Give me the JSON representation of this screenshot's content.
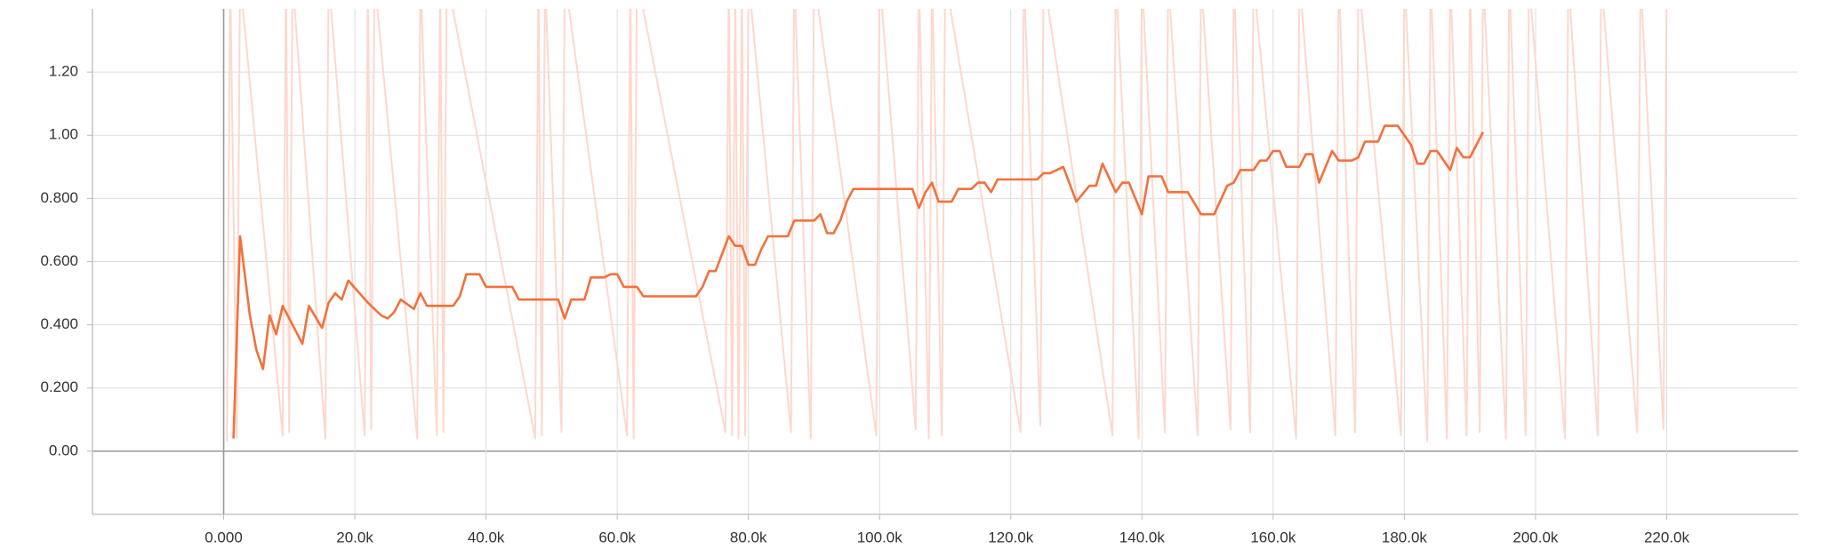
{
  "chart_data": {
    "type": "line",
    "xlim": [
      -20000,
      240000
    ],
    "ylim": [
      -0.2,
      1.4
    ],
    "xticks": [
      {
        "value": 0,
        "label": "0.000"
      },
      {
        "value": 20000,
        "label": "20.0k"
      },
      {
        "value": 40000,
        "label": "40.0k"
      },
      {
        "value": 60000,
        "label": "60.0k"
      },
      {
        "value": 80000,
        "label": "80.0k"
      },
      {
        "value": 100000,
        "label": "100.0k"
      },
      {
        "value": 120000,
        "label": "120.0k"
      },
      {
        "value": 140000,
        "label": "140.0k"
      },
      {
        "value": 160000,
        "label": "160.0k"
      },
      {
        "value": 180000,
        "label": "180.0k"
      },
      {
        "value": 200000,
        "label": "200.0k"
      },
      {
        "value": 220000,
        "label": "220.0k"
      }
    ],
    "yticks": [
      {
        "value": 0,
        "label": "0.00"
      },
      {
        "value": 0.2,
        "label": "0.200"
      },
      {
        "value": 0.4,
        "label": "0.400"
      },
      {
        "value": 0.6,
        "label": "0.600"
      },
      {
        "value": 0.8,
        "label": "0.800"
      },
      {
        "value": 1,
        "label": "1.00"
      },
      {
        "value": 1.2,
        "label": "1.20"
      }
    ],
    "grid": true,
    "series": [
      {
        "color": "#fdd8cc",
        "x": [
          500,
          1000,
          2000,
          2500,
          9000,
          9500,
          10000,
          10500,
          15500,
          16000,
          21500,
          22000,
          22500,
          23000,
          29500,
          30000,
          32500,
          33000,
          33500,
          34000,
          47500,
          48000,
          48500,
          49000,
          51500,
          52000,
          61500,
          62000,
          62500,
          63000,
          76500,
          77000,
          77500,
          78000,
          78500,
          79000,
          79500,
          80000,
          86500,
          87000,
          89500,
          90000,
          99500,
          100000,
          105500,
          106000,
          107500,
          108000,
          109500,
          110000,
          121500,
          122000,
          124500,
          125000,
          135500,
          136000,
          139500,
          140000,
          143500,
          144000,
          148500,
          149000,
          153500,
          154000,
          156500,
          157000,
          163500,
          164000,
          169500,
          170000,
          172500,
          173000,
          179500,
          180000,
          183500,
          184000,
          186500,
          187000,
          189500,
          190000,
          191500,
          192000,
          195500,
          196000,
          198500,
          199000,
          204500,
          205000,
          209500,
          210000,
          215500,
          216000,
          219500,
          220000
        ],
        "values": [
          0.03,
          1.5,
          0.04,
          1.5,
          0.05,
          1.5,
          0.06,
          1.5,
          0.04,
          1.5,
          0.05,
          1.5,
          0.07,
          1.5,
          0.04,
          1.5,
          0.05,
          1.5,
          0.06,
          1.5,
          0.04,
          1.5,
          0.05,
          1.5,
          0.06,
          1.5,
          0.05,
          1.5,
          0.04,
          1.5,
          0.06,
          1.5,
          0.05,
          1.5,
          0.04,
          1.5,
          0.05,
          1.5,
          0.06,
          1.5,
          0.04,
          1.5,
          0.05,
          1.5,
          0.07,
          1.5,
          0.04,
          1.5,
          0.05,
          1.5,
          0.06,
          1.5,
          0.08,
          1.5,
          0.05,
          1.5,
          0.04,
          1.5,
          0.06,
          1.5,
          0.05,
          1.5,
          0.07,
          1.5,
          0.06,
          1.5,
          0.04,
          1.5,
          0.05,
          1.5,
          0.06,
          1.5,
          0.05,
          1.5,
          0.03,
          1.5,
          0.04,
          1.5,
          0.05,
          1.5,
          0.06,
          1.5,
          0.04,
          1.5,
          0.05,
          1.5,
          0.04,
          1.5,
          0.05,
          1.5,
          0.06,
          1.5,
          0.07,
          1.5
        ]
      },
      {
        "color": "#f4703c",
        "x": [
          1500,
          2500,
          4000,
          5000,
          6000,
          7000,
          8000,
          9000,
          10000,
          12000,
          13000,
          15000,
          16000,
          17000,
          18000,
          19000,
          22000,
          24000,
          25000,
          26000,
          27000,
          29000,
          30000,
          31000,
          35000,
          36000,
          37000,
          39000,
          40000,
          44000,
          45000,
          51000,
          52000,
          53000,
          55000,
          56000,
          58000,
          59000,
          60000,
          61000,
          63000,
          64000,
          72000,
          73000,
          74000,
          75000,
          77000,
          78000,
          79000,
          80000,
          81000,
          82000,
          83000,
          86000,
          87000,
          90000,
          91000,
          92000,
          93000,
          94000,
          95000,
          96000,
          100000,
          105000,
          106000,
          107000,
          108000,
          109000,
          111000,
          112000,
          114000,
          115000,
          116000,
          117000,
          118000,
          124000,
          125000,
          126000,
          127000,
          128000,
          130000,
          132000,
          133000,
          134000,
          136000,
          137000,
          138000,
          140000,
          141000,
          143000,
          144000,
          147000,
          149000,
          151000,
          153000,
          154000,
          155000,
          157000,
          158000,
          159000,
          160000,
          161000,
          162000,
          164000,
          165000,
          166000,
          167000,
          169000,
          170000,
          172000,
          173000,
          174000,
          176000,
          177000,
          179000,
          181000,
          182000,
          183000,
          184000,
          185000,
          187000,
          188000,
          189000,
          190000,
          192000
        ],
        "values": [
          0.04,
          0.68,
          0.43,
          0.32,
          0.26,
          0.43,
          0.37,
          0.46,
          0.42,
          0.34,
          0.46,
          0.39,
          0.47,
          0.5,
          0.48,
          0.54,
          0.47,
          0.43,
          0.42,
          0.44,
          0.48,
          0.45,
          0.5,
          0.46,
          0.46,
          0.49,
          0.56,
          0.56,
          0.52,
          0.52,
          0.48,
          0.48,
          0.42,
          0.48,
          0.48,
          0.55,
          0.55,
          0.56,
          0.56,
          0.52,
          0.52,
          0.49,
          0.49,
          0.52,
          0.57,
          0.57,
          0.68,
          0.65,
          0.65,
          0.59,
          0.59,
          0.64,
          0.68,
          0.68,
          0.73,
          0.73,
          0.75,
          0.69,
          0.69,
          0.73,
          0.79,
          0.83,
          0.83,
          0.83,
          0.77,
          0.82,
          0.85,
          0.79,
          0.79,
          0.83,
          0.83,
          0.85,
          0.85,
          0.82,
          0.86,
          0.86,
          0.88,
          0.88,
          0.89,
          0.9,
          0.79,
          0.84,
          0.84,
          0.91,
          0.82,
          0.85,
          0.85,
          0.75,
          0.87,
          0.87,
          0.82,
          0.82,
          0.75,
          0.75,
          0.84,
          0.85,
          0.89,
          0.89,
          0.92,
          0.92,
          0.95,
          0.95,
          0.9,
          0.9,
          0.94,
          0.94,
          0.85,
          0.95,
          0.92,
          0.92,
          0.93,
          0.98,
          0.98,
          1.03,
          1.03,
          0.97,
          0.91,
          0.91,
          0.95,
          0.95,
          0.89,
          0.96,
          0.93,
          0.93,
          1.01
        ]
      }
    ]
  }
}
